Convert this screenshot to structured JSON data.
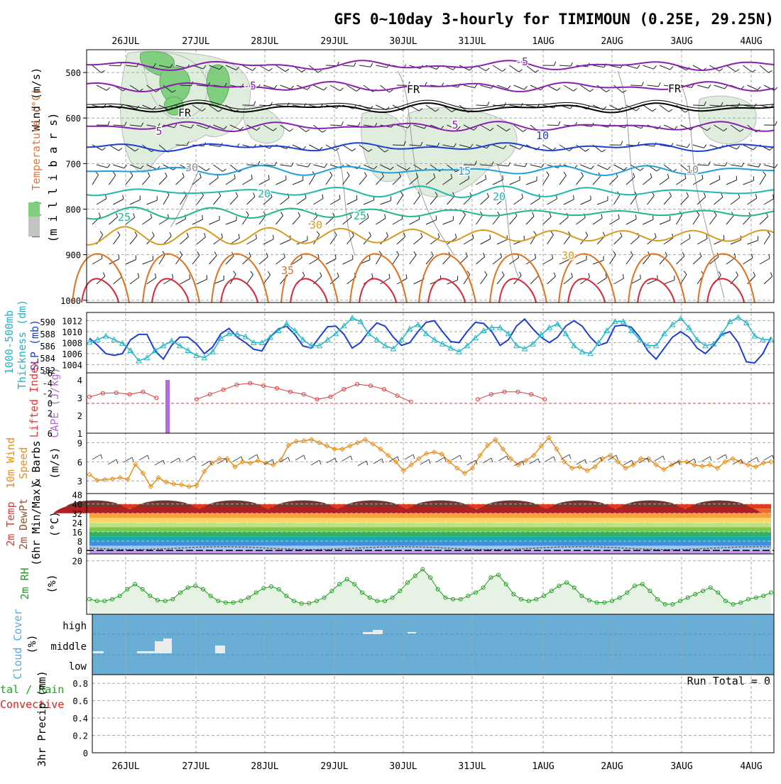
{
  "title": "GFS 0~10day 3-hourly for TIMIMOUN (0.25E, 29.25N)",
  "dates": [
    "26JUL",
    "27JUL",
    "28JUL",
    "29JUL",
    "30JUL",
    "31JUL",
    "1AUG",
    "2AUG",
    "3AUG",
    "4AUG"
  ],
  "colors": {
    "frame": "#000000",
    "grid": "#a8a8a8",
    "rh_green": "#1f9f1f",
    "temp_red": "#e03a3a",
    "slp_blue": "#1f3fd0",
    "thickness_cyan": "#1fb7c7",
    "cape_purple": "#b36ae2",
    "wind_orange": "#e7901f",
    "cloud_blue": "#6aaed6",
    "precip_green": "#1fa81f",
    "precip_red": "#e02020",
    "sky_blue": "#5aa8e0"
  },
  "panel_labels": {
    "upper_wind": "Wind (m/s)",
    "upper_temp": "Temperature (°C)",
    "upper_rh": "RH (%)",
    "upper_axis": "(m i l l i b a r s)",
    "slp_thick_1": "1000-500mb",
    "slp_thick_2": "Thickness (dm)",
    "slp_thick_3": "SLP (mb)",
    "li_1": "Lifted Index",
    "li_2": "CAPE (J/kg)",
    "wind10_1": "10m Wind",
    "wind10_2": "Speed",
    "wind10_3": "& Barbs",
    "wind10_unit": "(m/s)",
    "temp_1": "2m Temp",
    "temp_2": "2m DewPt",
    "temp_3": "(6hr Min/Max)",
    "temp_unit": "(°C)",
    "rh_1": "2m RH",
    "rh_unit": "(%)",
    "cloud_1": "Cloud Cover",
    "cloud_unit": "(%)",
    "precip_1": "tal / Rain",
    "precip_2": "Convective",
    "precip_3": "3hr Precip (mm)",
    "run_total": "Run Total = 0"
  },
  "chart_data": [
    {
      "type": "line",
      "panel": "upper_air",
      "ylabel": "millibars",
      "yticks": [
        500,
        600,
        700,
        800,
        900,
        1000
      ],
      "ylim": [
        450,
        1005
      ],
      "contour_labels": [
        "-5",
        "-5",
        "5",
        "5",
        "FR",
        "FR",
        "FR",
        "10",
        "15",
        "20",
        "20",
        "25",
        "25",
        "30",
        "30",
        "35",
        "30",
        "10"
      ]
    },
    {
      "type": "line",
      "panel": "slp_thickness",
      "yticks_slp": [
        1004,
        1006,
        1008,
        1010,
        1012
      ],
      "yticks_thickness": [
        582,
        584,
        586,
        588,
        590
      ],
      "series": [
        {
          "name": "SLP (mb)",
          "values": [
            1008.8,
            1007.5,
            1006.0,
            1005.7,
            1006.0,
            1008.5,
            1009.5,
            1009.5,
            1006.5,
            1005.0,
            1007.5,
            1009.0,
            1009.0,
            1007.8,
            1006.0,
            1007.2,
            1009.6,
            1010.6,
            1009.0,
            1008.0,
            1006.8,
            1006.5,
            1009.0,
            1010.5,
            1011.0,
            1009.5,
            1007.4,
            1007.0,
            1009.0,
            1010.9,
            1011.0,
            1009.5,
            1007.0,
            1008.0,
            1010.0,
            1011.6,
            1011.0,
            1009.0,
            1007.5,
            1008.0,
            1010.0,
            1011.7,
            1012.0,
            1010.0,
            1008.2,
            1008.0,
            1010.0,
            1011.7,
            1011.5,
            1010.0,
            1007.5,
            1008.5,
            1011.0,
            1012.3,
            1010.5,
            1009.0,
            1008.0,
            1009.0,
            1011.0,
            1012.0,
            1011.0,
            1009.0,
            1007.5,
            1008.0,
            1011.0,
            1011.2,
            1010.8,
            1009.0,
            1006.5,
            1005.0,
            1007.0,
            1009.0,
            1010.0,
            1009.0,
            1007.0,
            1006.0,
            1007.5,
            1009.5,
            1010.0,
            1008.0,
            1004.5,
            1004.3,
            1006.0,
            1009.0
          ]
        },
        {
          "name": "1000-500mb Thickness (dm)",
          "values": [
            586.6,
            587.0,
            587.6,
            587.0,
            586.4,
            585.2,
            583.5,
            584.0,
            585.2,
            586.0,
            586.8,
            586.0,
            585.2,
            584.4,
            584.0,
            585.0,
            587.2,
            588.0,
            587.9,
            587.5,
            586.5,
            586.5,
            587.4,
            588.5,
            589.6,
            588.5,
            587.0,
            586.0,
            586.0,
            587.0,
            588.0,
            589.3,
            590.6,
            590.0,
            588.0,
            587.0,
            586.0,
            585.5,
            587.0,
            588.8,
            589.5,
            588.0,
            587.0,
            586.3,
            585.6,
            585.0,
            586.0,
            587.3,
            588.5,
            589.0,
            589.0,
            588.0,
            586.0,
            585.5,
            586.3,
            587.8,
            589.0,
            589.6,
            588.0,
            586.0,
            585.0,
            584.7,
            586.5,
            588.5,
            590.0,
            590.0,
            588.5,
            587.0,
            586.0,
            586.0,
            588.0,
            589.5,
            590.5,
            589.0,
            587.0,
            586.0,
            586.3,
            588.0,
            590.0,
            590.7,
            589.8,
            587.6,
            587.0,
            587.0
          ]
        }
      ]
    },
    {
      "type": "line",
      "panel": "lifted_index_cape",
      "yticks_li": [
        6,
        2,
        0,
        -2,
        -4,
        -6
      ],
      "yticks_cape": [
        1,
        2,
        3,
        4
      ],
      "series": [
        {
          "name": "Lifted Index",
          "values": [
            3.0,
            2.3,
            2.2,
            2.5,
            2.0,
            3.2,
            6.0,
            6.0,
            3.5,
            2.5,
            1.6,
            0.6,
            0.3,
            0.8,
            1.3,
            2.0,
            2.5,
            3.5,
            3.0,
            1.5,
            0.5,
            0.8,
            1.5,
            2.8,
            4.0,
            6.0,
            6.0,
            6.0,
            6.0,
            3.5,
            2.5,
            2.0,
            2.0,
            2.5,
            3.5,
            6.0,
            6.0,
            6.0,
            6.0,
            6.0,
            6.0,
            6.0,
            6.0,
            6.0,
            6.0,
            6.0,
            6.0,
            6.0,
            6.0,
            6.0
          ]
        },
        {
          "name": "CAPE (J/kg)",
          "values": [
            4.0
          ]
        }
      ]
    },
    {
      "type": "line",
      "panel": "wind10m",
      "yticks": [
        3,
        6,
        9
      ],
      "series": [
        {
          "name": "10m Wind Speed",
          "values": [
            4.0,
            3.1,
            3.2,
            3.3,
            3.5,
            3.2,
            5.6,
            4.2,
            2.1,
            3.5,
            2.8,
            2.5,
            2.4,
            2.1,
            2.3,
            4.5,
            5.8,
            6.5,
            6.5,
            5.2,
            6.0,
            5.8,
            6.2,
            5.8,
            5.5,
            6.3,
            8.6,
            9.2,
            9.3,
            9.5,
            9.0,
            8.5,
            8.0,
            8.0,
            8.5,
            9.0,
            9.5,
            8.8,
            8.0,
            7.0,
            6.0,
            4.6,
            5.5,
            6.5,
            7.3,
            7.5,
            7.2,
            6.0,
            5.0,
            4.2,
            5.0,
            7.0,
            8.6,
            9.5,
            8.0,
            6.5,
            5.5,
            6.2,
            7.0,
            8.5,
            9.8,
            8.0,
            6.0,
            5.0,
            5.2,
            4.6,
            5.2,
            6.5,
            7.0,
            6.0,
            5.0,
            5.5,
            6.5,
            6.5,
            5.5,
            4.8,
            5.5,
            6.0,
            6.0,
            5.5,
            5.3,
            5.5,
            5.0,
            6.0,
            6.5,
            6.0,
            5.5,
            5.2,
            5.8,
            6.0
          ]
        }
      ]
    },
    {
      "type": "area",
      "panel": "temp2m",
      "yticks": [
        0,
        8,
        16,
        24,
        32,
        40,
        48
      ],
      "series": [
        {
          "name": "2m Temp max",
          "values": [
            44,
            44,
            44,
            44,
            44,
            44,
            44,
            44,
            44,
            44
          ]
        },
        {
          "name": "2m DewPt",
          "values": [
            1.0,
            2.0,
            1.5,
            2.0,
            3.0,
            3.0,
            2.0,
            2.5,
            2.0,
            1.5
          ]
        }
      ]
    },
    {
      "type": "line",
      "panel": "rh2m",
      "yticks": [
        20
      ],
      "series": [
        {
          "name": "2m RH",
          "values": [
            8.5,
            8.0,
            8.0,
            8.5,
            9.5,
            11.5,
            13.0,
            11.5,
            9.5,
            8.2,
            8.0,
            8.5,
            10.5,
            12.0,
            12.5,
            11.5,
            9.5,
            8.0,
            7.5,
            7.5,
            8.0,
            9.0,
            10.5,
            11.8,
            12.3,
            11.5,
            9.5,
            8.0,
            7.2,
            7.3,
            8.0,
            9.0,
            11.0,
            13.0,
            14.5,
            13.0,
            10.5,
            9.0,
            8.0,
            8.0,
            9.0,
            11.0,
            13.5,
            15.5,
            17.5,
            15.0,
            11.5,
            9.0,
            8.5,
            8.5,
            9.5,
            10.5,
            12.0,
            15.0,
            15.8,
            13.0,
            10.0,
            8.5,
            8.0,
            8.5,
            9.5,
            11.0,
            12.5,
            13.5,
            12.0,
            9.5,
            8.2,
            7.5,
            7.5,
            8.0,
            9.0,
            10.5,
            12.5,
            13.0,
            11.0,
            8.5,
            7.0,
            7.0,
            8.0,
            9.0,
            10.0,
            11.0,
            12.0,
            10.5,
            8.0,
            7.0,
            7.5,
            8.5,
            9.0,
            9.5,
            10.5
          ]
        }
      ]
    },
    {
      "type": "bar",
      "panel": "cloud_cover",
      "yticks": [
        "high",
        "middle",
        "low"
      ]
    },
    {
      "type": "line",
      "panel": "precip",
      "yticks": [
        0,
        0.2,
        0.4,
        0.6,
        0.8
      ],
      "ylim": [
        0,
        0.9
      ]
    }
  ]
}
